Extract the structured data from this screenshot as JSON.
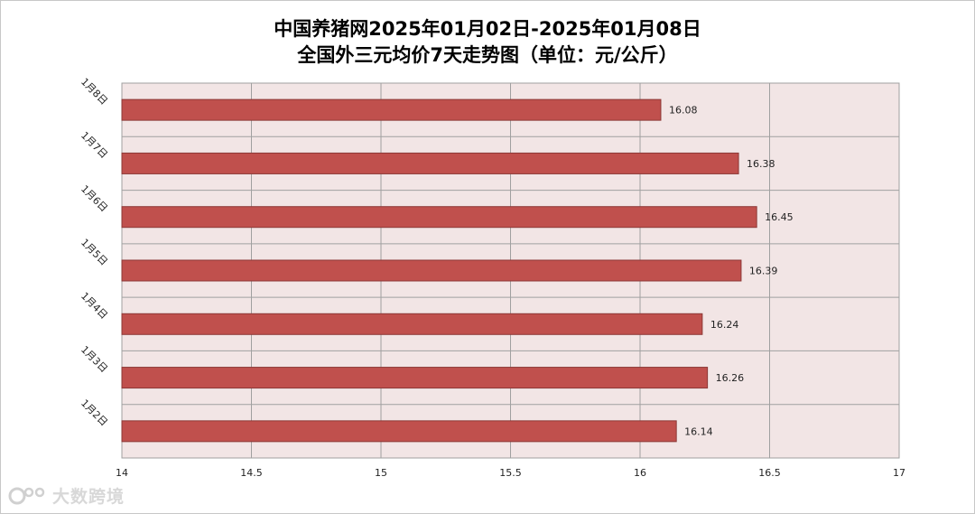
{
  "title_line1": "中国养猪网2025年01月02日-2025年01月08日",
  "title_line2": "全国外三元均价7天走势图（单位：元/公斤）",
  "watermark_text": "大数跨境",
  "colors": {
    "bar_fill": "#c0504d",
    "bar_stroke": "#8c3836",
    "plot_bg": "#f2e5e5",
    "grid": "#a0a0a0"
  },
  "chart_data": {
    "type": "bar",
    "orientation": "horizontal",
    "categories": [
      "1月8日",
      "1月7日",
      "1月6日",
      "1月5日",
      "1月4日",
      "1月3日",
      "1月2日"
    ],
    "values": [
      16.08,
      16.38,
      16.45,
      16.39,
      16.24,
      16.26,
      16.14
    ],
    "value_labels": [
      "16.08",
      "16.38",
      "16.45",
      "16.39",
      "16.24",
      "16.26",
      "16.14"
    ],
    "xlim": [
      14,
      17
    ],
    "x_ticks": [
      "14",
      "14.5",
      "15",
      "15.5",
      "16",
      "16.5",
      "17"
    ],
    "grid": true,
    "legend": "none"
  }
}
